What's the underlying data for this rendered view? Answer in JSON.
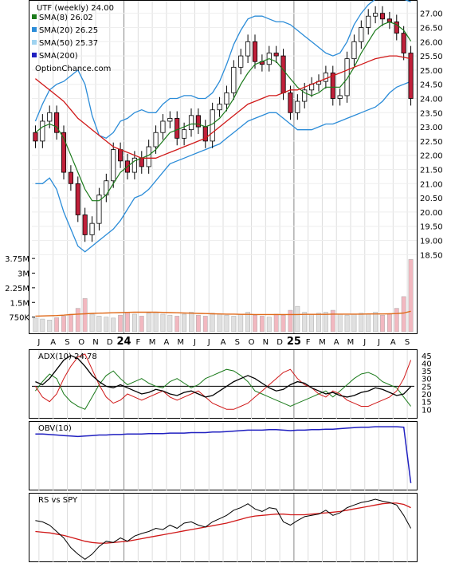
{
  "chart_data": {
    "type": "candlestick",
    "symbol_label": "UTF (weekly) 24.00",
    "watermark": "OptionChance.com",
    "x_ticks": [
      "J",
      "A",
      "S",
      "O",
      "N",
      "D",
      "24",
      "F",
      "M",
      "A",
      "M",
      "J",
      "J",
      "A",
      "S",
      "O",
      "N",
      "D",
      "25",
      "F",
      "M",
      "A",
      "M",
      "J",
      "J",
      "A",
      "S"
    ],
    "price_ticks": [
      "27.00",
      "26.50",
      "26.00",
      "25.50",
      "25.00",
      "24.50",
      "24.00",
      "23.50",
      "23.00",
      "22.50",
      "22.00",
      "21.50",
      "21.00",
      "20.50",
      "20.00",
      "19.50",
      "19.00",
      "18.50"
    ],
    "price_ylim": [
      18.2,
      27.3
    ],
    "volume_ticks": [
      "3.75M",
      "3M",
      "2.25M",
      "1.5M",
      "750K"
    ],
    "volume_tick_values": [
      3750000,
      3000000,
      2250000,
      1500000,
      750000
    ],
    "legend": [
      {
        "label": "SMA(8) 26.02",
        "color": "#1a7a1a"
      },
      {
        "label": "SMA(20) 26.25",
        "color": "#2b8cd8"
      },
      {
        "label": "SMA(50) 25.37",
        "color": "#9fd3f0"
      },
      {
        "label": "SMA(200)",
        "color": "#2020c0"
      }
    ],
    "close": [
      22.5,
      23.2,
      23.5,
      22.8,
      21.4,
      21.0,
      19.9,
      19.2,
      19.6,
      20.6,
      21.1,
      22.2,
      21.8,
      21.4,
      21.9,
      21.6,
      22.3,
      22.8,
      23.2,
      23.3,
      22.6,
      22.9,
      23.4,
      23.0,
      22.5,
      23.6,
      23.8,
      24.2,
      25.1,
      25.5,
      26.0,
      25.3,
      25.2,
      25.6,
      25.5,
      24.2,
      23.5,
      23.9,
      24.3,
      24.5,
      24.6,
      24.9,
      24.0,
      24.1,
      25.4,
      26.0,
      26.5,
      26.9,
      27.0,
      26.8,
      26.7,
      26.3,
      25.6,
      24.0
    ],
    "sma8": [
      22.8,
      23.0,
      23.1,
      23.0,
      22.6,
      22.0,
      21.4,
      20.8,
      20.4,
      20.4,
      20.6,
      21.0,
      21.4,
      21.6,
      21.8,
      21.9,
      22.0,
      22.2,
      22.5,
      22.8,
      22.9,
      23.0,
      23.1,
      23.1,
      23.0,
      23.1,
      23.3,
      23.6,
      24.0,
      24.5,
      24.9,
      25.2,
      25.3,
      25.4,
      25.3,
      25.0,
      24.7,
      24.4,
      24.2,
      24.1,
      24.2,
      24.4,
      24.4,
      24.4,
      24.7,
      25.1,
      25.6,
      26.0,
      26.4,
      26.6,
      26.7,
      26.6,
      26.4,
      26.02
    ],
    "bb_upper": [
      23.2,
      23.8,
      24.3,
      24.5,
      24.6,
      24.8,
      25.0,
      24.5,
      23.4,
      22.7,
      22.6,
      22.8,
      23.2,
      23.3,
      23.5,
      23.6,
      23.5,
      23.5,
      23.8,
      24.0,
      24.0,
      24.1,
      24.1,
      24.0,
      24.0,
      24.2,
      24.6,
      25.2,
      25.9,
      26.4,
      26.8,
      26.9,
      26.9,
      26.8,
      26.7,
      26.7,
      26.6,
      26.4,
      26.2,
      26.0,
      25.8,
      25.6,
      25.5,
      25.6,
      26.0,
      26.6,
      27.0,
      27.3,
      27.5,
      27.6,
      27.7,
      27.6,
      27.5,
      27.4
    ],
    "bb_lower": [
      21.0,
      21.0,
      21.2,
      20.8,
      20.0,
      19.4,
      18.8,
      18.6,
      18.8,
      19.0,
      19.2,
      19.4,
      19.7,
      20.1,
      20.5,
      20.6,
      20.8,
      21.1,
      21.4,
      21.7,
      21.8,
      21.9,
      22.0,
      22.1,
      22.2,
      22.3,
      22.4,
      22.6,
      22.8,
      23.0,
      23.2,
      23.3,
      23.4,
      23.5,
      23.5,
      23.3,
      23.1,
      22.9,
      22.9,
      22.9,
      23.0,
      23.1,
      23.1,
      23.2,
      23.3,
      23.4,
      23.5,
      23.6,
      23.7,
      23.9,
      24.2,
      24.4,
      24.5,
      24.6
    ],
    "sma200": [
      24.7,
      24.5,
      24.3,
      24.1,
      23.9,
      23.6,
      23.3,
      23.1,
      22.9,
      22.7,
      22.5,
      22.3,
      22.2,
      22.1,
      22.0,
      21.9,
      21.9,
      21.9,
      22.0,
      22.1,
      22.2,
      22.3,
      22.4,
      22.5,
      22.6,
      22.8,
      23.0,
      23.2,
      23.4,
      23.6,
      23.8,
      23.9,
      24.0,
      24.1,
      24.1,
      24.2,
      24.3,
      24.3,
      24.4,
      24.5,
      24.6,
      24.7,
      24.8,
      24.9,
      25.0,
      25.1,
      25.2,
      25.3,
      25.4,
      25.45,
      25.5,
      25.5,
      25.45,
      25.4
    ],
    "volume": [
      700000,
      650000,
      600000,
      720000,
      800000,
      900000,
      1200000,
      1700000,
      900000,
      800000,
      750000,
      700000,
      850000,
      1000000,
      900000,
      800000,
      950000,
      1000000,
      900000,
      850000,
      800000,
      900000,
      1000000,
      850000,
      800000,
      950000,
      900000,
      850000,
      800000,
      900000,
      1000000,
      850000,
      800000,
      750000,
      900000,
      850000,
      1100000,
      1300000,
      1000000,
      900000,
      950000,
      1000000,
      1100000,
      900000,
      850000,
      900000,
      950000,
      900000,
      1000000,
      850000,
      900000,
      1200000,
      1800000,
      3700000
    ],
    "volume_avg": [
      800000,
      810000,
      820000,
      830000,
      850000,
      880000,
      900000,
      920000,
      940000,
      950000,
      960000,
      970000,
      980000,
      990000,
      1000000,
      1000000,
      1000000,
      1000000,
      990000,
      980000,
      970000,
      960000,
      950000,
      940000,
      930000,
      920000,
      910000,
      900000,
      900000,
      890000,
      890000,
      880000,
      880000,
      880000,
      880000,
      880000,
      880000,
      880000,
      890000,
      890000,
      890000,
      890000,
      900000,
      900000,
      900000,
      900000,
      900000,
      910000,
      910000,
      910000,
      920000,
      930000,
      960000,
      1050000
    ],
    "adx_label": "ADX(10) 24.78",
    "adx_ticks": [
      "45",
      "40",
      "35",
      "30",
      "25",
      "20",
      "15",
      "10"
    ],
    "adx_ylim": [
      5,
      48
    ],
    "adx": [
      28,
      26,
      30,
      36,
      42,
      45,
      43,
      38,
      32,
      28,
      25,
      24,
      26,
      24,
      22,
      20,
      21,
      23,
      22,
      20,
      19,
      21,
      22,
      20,
      18,
      19,
      22,
      25,
      28,
      30,
      32,
      30,
      27,
      24,
      22,
      23,
      26,
      28,
      27,
      24,
      22,
      20,
      21,
      19,
      18,
      19,
      21,
      22,
      24,
      23,
      21,
      19,
      20,
      24.78
    ],
    "di_plus": [
      22,
      28,
      33,
      30,
      20,
      15,
      12,
      10,
      18,
      26,
      32,
      35,
      30,
      26,
      28,
      30,
      27,
      25,
      24,
      28,
      30,
      27,
      24,
      26,
      30,
      32,
      34,
      36,
      35,
      32,
      28,
      22,
      20,
      18,
      16,
      14,
      12,
      14,
      16,
      18,
      20,
      22,
      18,
      22,
      26,
      30,
      33,
      34,
      32,
      28,
      26,
      24,
      18,
      12
    ],
    "di_minus": [
      25,
      18,
      15,
      20,
      30,
      38,
      44,
      46,
      36,
      26,
      18,
      14,
      16,
      20,
      18,
      16,
      18,
      20,
      22,
      18,
      16,
      18,
      20,
      22,
      18,
      14,
      12,
      10,
      10,
      12,
      14,
      18,
      22,
      26,
      30,
      34,
      36,
      30,
      26,
      24,
      20,
      18,
      22,
      20,
      16,
      14,
      12,
      12,
      14,
      16,
      18,
      22,
      30,
      42
    ],
    "obv_label": "OBV(10)",
    "obv": [
      0.5,
      0.5,
      0.49,
      0.48,
      0.47,
      0.46,
      0.45,
      0.46,
      0.47,
      0.48,
      0.48,
      0.49,
      0.49,
      0.5,
      0.5,
      0.5,
      0.51,
      0.51,
      0.51,
      0.52,
      0.52,
      0.52,
      0.53,
      0.53,
      0.53,
      0.54,
      0.54,
      0.55,
      0.56,
      0.57,
      0.58,
      0.58,
      0.58,
      0.59,
      0.59,
      0.58,
      0.57,
      0.58,
      0.58,
      0.59,
      0.59,
      0.6,
      0.6,
      0.61,
      0.62,
      0.63,
      0.64,
      0.64,
      0.65,
      0.65,
      0.65,
      0.65,
      0.64,
      -0.5
    ],
    "rs_label": "RS vs SPY",
    "rs": [
      0.62,
      0.6,
      0.55,
      0.45,
      0.35,
      0.2,
      0.1,
      0.02,
      0.1,
      0.22,
      0.3,
      0.28,
      0.35,
      0.3,
      0.38,
      0.42,
      0.45,
      0.5,
      0.48,
      0.55,
      0.5,
      0.58,
      0.6,
      0.55,
      0.52,
      0.6,
      0.65,
      0.7,
      0.78,
      0.82,
      0.88,
      0.8,
      0.76,
      0.82,
      0.8,
      0.6,
      0.55,
      0.62,
      0.68,
      0.7,
      0.72,
      0.78,
      0.7,
      0.74,
      0.82,
      0.86,
      0.9,
      0.92,
      0.95,
      0.92,
      0.9,
      0.86,
      0.7,
      0.5
    ],
    "rs_ma": [
      0.45,
      0.44,
      0.43,
      0.41,
      0.39,
      0.36,
      0.33,
      0.3,
      0.28,
      0.27,
      0.27,
      0.28,
      0.29,
      0.3,
      0.32,
      0.34,
      0.36,
      0.38,
      0.4,
      0.42,
      0.44,
      0.46,
      0.48,
      0.5,
      0.52,
      0.54,
      0.56,
      0.58,
      0.61,
      0.64,
      0.67,
      0.69,
      0.7,
      0.71,
      0.72,
      0.72,
      0.71,
      0.71,
      0.71,
      0.72,
      0.73,
      0.74,
      0.75,
      0.76,
      0.78,
      0.8,
      0.82,
      0.84,
      0.86,
      0.88,
      0.89,
      0.89,
      0.87,
      0.82
    ]
  }
}
